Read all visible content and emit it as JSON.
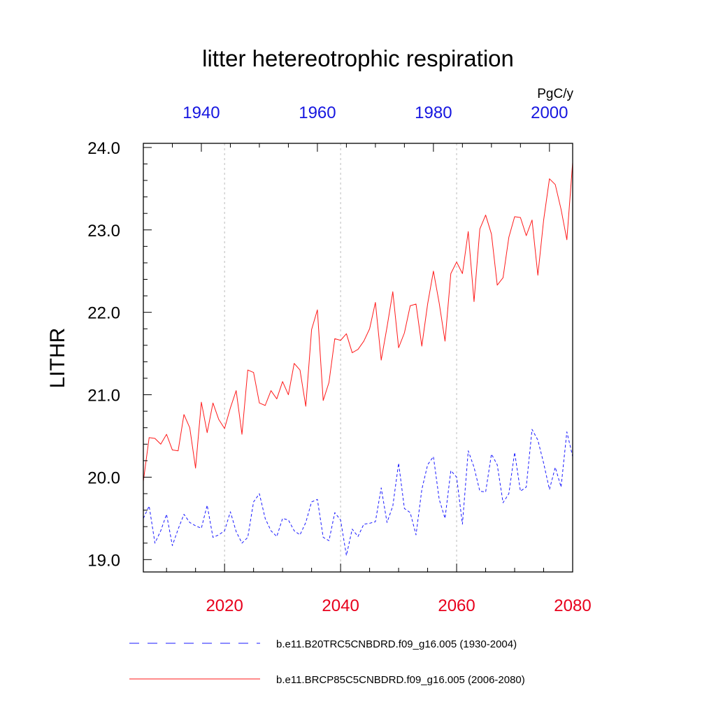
{
  "chart_data": {
    "type": "line",
    "title": "litter hetereotrophic respiration",
    "units": "PgC/y",
    "ylabel": "LITHR",
    "ylim": [
      18.85,
      24.05
    ],
    "yticks": [
      "19.0",
      "20.0",
      "21.0",
      "22.0",
      "23.0",
      "24.0"
    ],
    "yticks_values": [
      19,
      20,
      21,
      22,
      23,
      24
    ],
    "bottom_axis": {
      "range": [
        2006,
        2080
      ],
      "ticks": [
        2020,
        2040,
        2060,
        2080
      ],
      "tick_labels": [
        "2020",
        "2040",
        "2060",
        "2080"
      ],
      "color": "#e8001c"
    },
    "top_axis": {
      "range": [
        1930,
        2004
      ],
      "ticks": [
        1940,
        1960,
        1980,
        2000
      ],
      "tick_labels": [
        "1940",
        "1960",
        "1980",
        "2000"
      ],
      "color": "#1616e0"
    },
    "series": [
      {
        "name": "b.e11.B20TRC5CNBDRD.f09_g16.005 (1930-2004)",
        "color": "#1a1aff",
        "style": "dashed",
        "years": [
          1930,
          1931,
          1932,
          1933,
          1934,
          1935,
          1936,
          1937,
          1938,
          1939,
          1940,
          1941,
          1942,
          1943,
          1944,
          1945,
          1946,
          1947,
          1948,
          1949,
          1950,
          1951,
          1952,
          1953,
          1954,
          1955,
          1956,
          1957,
          1958,
          1959,
          1960,
          1961,
          1962,
          1963,
          1964,
          1965,
          1966,
          1967,
          1968,
          1969,
          1970,
          1971,
          1972,
          1973,
          1974,
          1975,
          1976,
          1977,
          1978,
          1979,
          1980,
          1981,
          1982,
          1983,
          1984,
          1985,
          1986,
          1987,
          1988,
          1989,
          1990,
          1991,
          1992,
          1993,
          1994,
          1995,
          1996,
          1997,
          1998,
          1999,
          2000,
          2001,
          2002,
          2003,
          2004
        ],
        "values": [
          19.5,
          19.65,
          19.2,
          19.35,
          19.55,
          19.17,
          19.37,
          19.55,
          19.45,
          19.41,
          19.38,
          19.66,
          19.27,
          19.3,
          19.35,
          19.58,
          19.34,
          19.2,
          19.27,
          19.7,
          19.8,
          19.5,
          19.35,
          19.28,
          19.5,
          19.48,
          19.35,
          19.3,
          19.45,
          19.7,
          19.73,
          19.27,
          19.23,
          19.57,
          19.48,
          19.05,
          19.37,
          19.28,
          19.43,
          19.44,
          19.46,
          19.87,
          19.45,
          19.65,
          20.17,
          19.62,
          19.57,
          19.3,
          19.85,
          20.15,
          20.25,
          19.73,
          19.5,
          20.08,
          20.0,
          19.43,
          20.32,
          20.12,
          19.83,
          19.82,
          20.28,
          20.15,
          19.69,
          19.8,
          20.3,
          19.83,
          19.88,
          20.58,
          20.45,
          20.17,
          19.85,
          20.12,
          19.88,
          20.55,
          20.25
        ]
      },
      {
        "name": "b.e11.BRCP85C5CNBDRD.f09_g16.005 (2006-2080)",
        "color": "#ff1a1a",
        "style": "solid",
        "years": [
          2006,
          2007,
          2008,
          2009,
          2010,
          2011,
          2012,
          2013,
          2014,
          2015,
          2016,
          2017,
          2018,
          2019,
          2020,
          2021,
          2022,
          2023,
          2024,
          2025,
          2026,
          2027,
          2028,
          2029,
          2030,
          2031,
          2032,
          2033,
          2034,
          2035,
          2036,
          2037,
          2038,
          2039,
          2040,
          2041,
          2042,
          2043,
          2044,
          2045,
          2046,
          2047,
          2048,
          2049,
          2050,
          2051,
          2052,
          2053,
          2054,
          2055,
          2056,
          2057,
          2058,
          2059,
          2060,
          2061,
          2062,
          2063,
          2064,
          2065,
          2066,
          2067,
          2068,
          2069,
          2070,
          2071,
          2072,
          2073,
          2074,
          2075,
          2076,
          2077,
          2078,
          2079,
          2080
        ],
        "values": [
          19.95,
          20.48,
          20.47,
          20.4,
          20.52,
          20.33,
          20.32,
          20.76,
          20.6,
          20.11,
          20.91,
          20.54,
          20.9,
          20.7,
          20.59,
          20.84,
          21.05,
          20.52,
          21.3,
          21.27,
          20.9,
          20.87,
          21.05,
          20.95,
          21.16,
          21.0,
          21.38,
          21.3,
          20.86,
          21.79,
          22.03,
          20.93,
          21.15,
          21.68,
          21.66,
          21.74,
          21.51,
          21.55,
          21.65,
          21.8,
          22.12,
          21.42,
          21.82,
          22.25,
          21.57,
          21.75,
          22.08,
          22.1,
          21.59,
          22.1,
          22.5,
          22.11,
          21.65,
          22.47,
          22.61,
          22.47,
          22.98,
          22.13,
          23.01,
          23.18,
          22.95,
          22.33,
          22.42,
          22.91,
          23.16,
          23.15,
          22.93,
          23.12,
          22.45,
          23.12,
          23.62,
          23.55,
          23.25,
          22.88,
          23.82
        ]
      }
    ],
    "legend": {
      "position": "bottom",
      "entries": [
        "b.e11.B20TRC5CNBDRD.f09_g16.005 (1930-2004)",
        "b.e11.BRCP85C5CNBDRD.f09_g16.005 (2006-2080)"
      ]
    },
    "grid": "vertical dotted at bottom-axis major ticks"
  }
}
